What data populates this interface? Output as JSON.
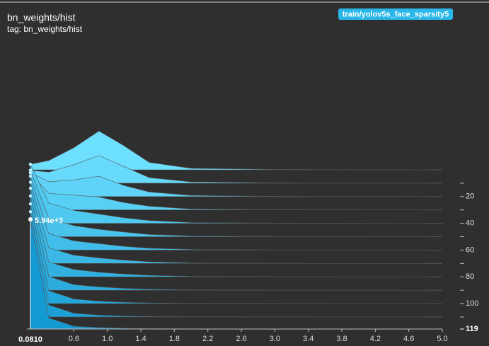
{
  "chart_data": {
    "type": "ridgeline",
    "title": "bn_weights/hist",
    "subtitle": "tag: bn_weights/hist",
    "series": [
      {
        "name": "train/yolov5s_face_sparsity5",
        "color": "#29b6e8"
      }
    ],
    "xlim": [
      0.081,
      5.0
    ],
    "xticks": [
      0.6,
      {
        "value": 1,
        "label": "1.0"
      },
      1.4,
      1.8,
      2.2,
      2.6,
      {
        "value": 3,
        "label": "3.0"
      },
      3.4,
      3.8,
      4.2,
      4.6,
      {
        "value": 5,
        "label": "5.0"
      }
    ],
    "ylim": [
      0,
      119
    ],
    "yticks": [
      20,
      40,
      60,
      80,
      100
    ],
    "yticks_minor": [
      10,
      30,
      50,
      70,
      90,
      110
    ],
    "count_max": 5940,
    "bins": [
      0.081,
      0.3,
      0.6,
      0.9,
      1.2,
      1.5,
      2.0,
      3.0,
      4.0,
      4.8
    ],
    "histograms": [
      {
        "step": 0,
        "counts": [
          300,
          500,
          1200,
          2100,
          1300,
          400,
          80,
          20,
          5,
          0
        ]
      },
      {
        "step": 10,
        "counts": [
          700,
          600,
          1000,
          1500,
          900,
          300,
          70,
          20,
          5,
          0
        ]
      },
      {
        "step": 20,
        "counts": [
          1300,
          800,
          900,
          1100,
          600,
          250,
          60,
          15,
          5,
          0
        ]
      },
      {
        "step": 30,
        "counts": [
          2000,
          900,
          800,
          700,
          400,
          200,
          50,
          15,
          5,
          0
        ]
      },
      {
        "step": 40,
        "counts": [
          3200,
          1100,
          700,
          500,
          300,
          150,
          40,
          15,
          5,
          0
        ]
      },
      {
        "step": 50,
        "counts": [
          3600,
          1000,
          600,
          400,
          250,
          120,
          40,
          15,
          5,
          0
        ]
      },
      {
        "step": 60,
        "counts": [
          4000,
          900,
          500,
          350,
          200,
          100,
          35,
          12,
          4,
          0
        ]
      },
      {
        "step": 70,
        "counts": [
          4400,
          850,
          450,
          300,
          180,
          90,
          30,
          12,
          4,
          0
        ]
      },
      {
        "step": 80,
        "counts": [
          4800,
          800,
          400,
          250,
          150,
          80,
          25,
          10,
          3,
          0
        ]
      },
      {
        "step": 90,
        "counts": [
          5100,
          750,
          300,
          180,
          100,
          50,
          20,
          8,
          3,
          0
        ]
      },
      {
        "step": 100,
        "counts": [
          5400,
          700,
          250,
          130,
          70,
          40,
          15,
          6,
          2,
          0
        ]
      },
      {
        "step": 110,
        "counts": [
          5700,
          650,
          200,
          100,
          50,
          30,
          12,
          5,
          2,
          0
        ]
      },
      {
        "step": 119,
        "counts": [
          5940,
          600,
          150,
          80,
          40,
          20,
          10,
          5,
          2,
          0
        ]
      }
    ],
    "hover": {
      "x": 0.081,
      "x_label": "0.0810",
      "count": 5940,
      "count_label": "5.94e+3",
      "step": 119
    }
  }
}
